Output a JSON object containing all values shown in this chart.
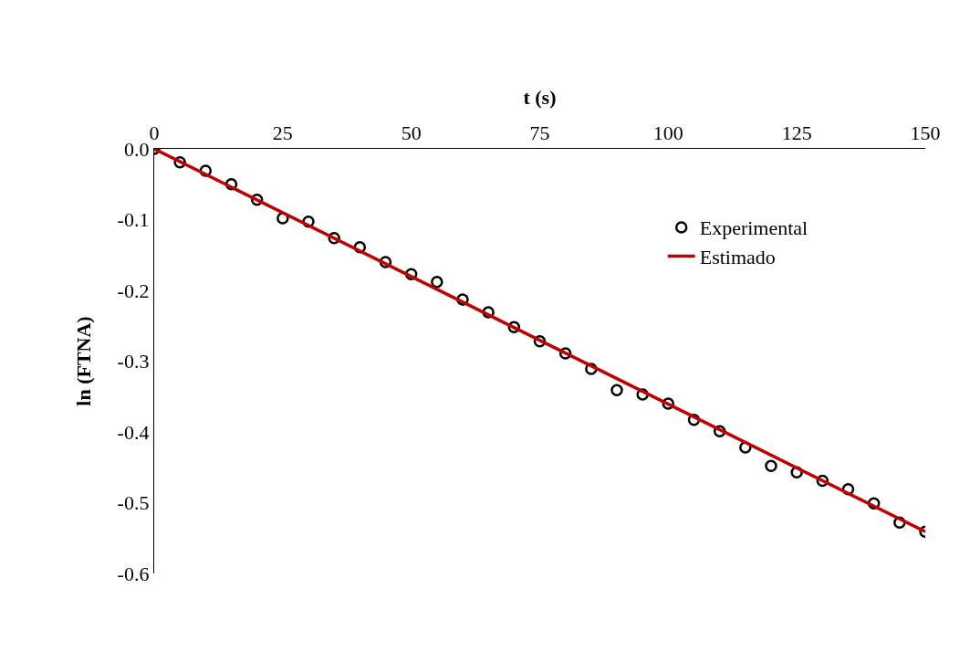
{
  "chart_data": {
    "type": "scatter",
    "xlabel": "t (s)",
    "ylabel": "ln (FTNA)",
    "xlim": [
      0,
      150
    ],
    "ylim": [
      -0.6,
      0
    ],
    "xticks": [
      0,
      25,
      50,
      75,
      100,
      125,
      150
    ],
    "yticks": [
      {
        "value": 0,
        "label": "0.0"
      },
      -0.1,
      -0.2,
      -0.3,
      -0.4,
      -0.5,
      -0.6
    ],
    "grid": false,
    "legend": "right",
    "series": [
      {
        "name": "Experimental",
        "marker": "circle",
        "color": "#000000",
        "x": [
          0,
          5,
          10,
          15,
          20,
          25,
          30,
          35,
          40,
          45,
          50,
          55,
          60,
          65,
          70,
          75,
          80,
          85,
          90,
          95,
          100,
          105,
          110,
          115,
          120,
          125,
          130,
          135,
          140,
          145,
          150
        ],
        "values": [
          0,
          -0.019,
          -0.031,
          -0.05,
          -0.072,
          -0.098,
          -0.103,
          -0.126,
          -0.139,
          -0.16,
          -0.177,
          -0.188,
          -0.213,
          -0.231,
          -0.252,
          -0.272,
          -0.289,
          -0.311,
          -0.341,
          -0.347,
          -0.36,
          -0.383,
          -0.399,
          -0.422,
          -0.448,
          -0.457,
          -0.469,
          -0.481,
          -0.501,
          -0.528,
          -0.541
        ]
      },
      {
        "name": "Estimado",
        "type": "line",
        "marker": "none",
        "color": "#c00000",
        "line_style": "solid",
        "x": [
          0,
          150
        ],
        "values": [
          0,
          -0.541
        ]
      }
    ]
  }
}
